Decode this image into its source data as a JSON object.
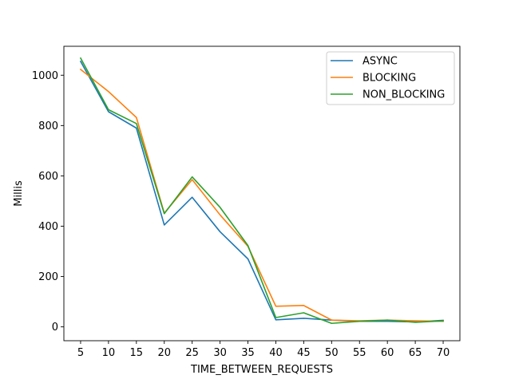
{
  "chart_data": {
    "type": "line",
    "title": "",
    "xlabel": "TIME_BETWEEN_REQUESTS",
    "ylabel": "Millis",
    "x": [
      5,
      10,
      15,
      20,
      25,
      30,
      35,
      40,
      45,
      50,
      55,
      60,
      65,
      70
    ],
    "xticks": [
      "5",
      "10",
      "15",
      "20",
      "25",
      "30",
      "35",
      "40",
      "45",
      "50",
      "55",
      "60",
      "65",
      "70"
    ],
    "yticks": [
      "0",
      "200",
      "400",
      "600",
      "800",
      "1000"
    ],
    "xlim": [
      2,
      73
    ],
    "ylim": [
      -55,
      1115
    ],
    "grid": false,
    "legend": "top-right",
    "series": [
      {
        "name": "ASYNC",
        "color": "#1f77b4",
        "values": [
          1055,
          855,
          790,
          405,
          515,
          378,
          270,
          28,
          34,
          27,
          22,
          22,
          20,
          26
        ]
      },
      {
        "name": "BLOCKING",
        "color": "#ff7f0e",
        "values": [
          1023,
          935,
          832,
          452,
          585,
          445,
          320,
          82,
          85,
          27,
          24,
          27,
          24,
          22
        ]
      },
      {
        "name": "NON_BLOCKING",
        "color": "#2ca02c",
        "values": [
          1068,
          863,
          808,
          450,
          596,
          475,
          323,
          37,
          56,
          14,
          22,
          27,
          18,
          24
        ]
      }
    ]
  }
}
